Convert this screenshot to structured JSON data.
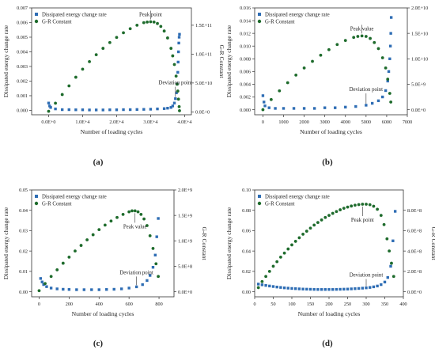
{
  "figure": {
    "panels": [
      {
        "label": "(a)",
        "xlabel": "Number of loading cycles",
        "ylabel_left": "Dissipated energy change rate",
        "ylabel_right": "G-R Constant",
        "legend": [
          "Dissipated energy change rate",
          "G-R Constant"
        ],
        "peak_text": "Peak point",
        "deviation_text": "Deviation point"
      },
      {
        "label": "(b)",
        "xlabel": "Number of loading cycles",
        "ylabel_left": "Dissipated energy change rate",
        "ylabel_right": "G-R Constant",
        "legend": [
          "Dissipated energy change rate",
          "G-R Constant"
        ],
        "peak_text": "Peak value",
        "deviation_text": "Deviation point"
      },
      {
        "label": "(c)",
        "xlabel": "Number of loading cycles",
        "ylabel_left": "Dissipated energy change rate",
        "ylabel_right": "G-R Constant",
        "legend": [
          "Dissipated energy change rate",
          "G-R Constant"
        ],
        "peak_text": "Peak value",
        "deviation_text": "Deviation point"
      },
      {
        "label": "(d)",
        "xlabel": "Number of loading cycles",
        "ylabel_left": "Dissipated energy change rate",
        "ylabel_right": "G-R Constant",
        "legend": [
          "Dissipated energy change rate",
          "G-R Constant"
        ],
        "peak_text": "Peak point",
        "deviation_text": "Deviation point"
      }
    ]
  },
  "chart_data": [
    {
      "type": "scatter",
      "label": "(a)",
      "xlabel": "Number of loading cycles",
      "ylabel": "Dissipated energy change rate",
      "y2label": "G-R Constant",
      "xlim": [
        -5000,
        42000
      ],
      "ylim": [
        -0.0003,
        0.007
      ],
      "y2lim": [
        -5000000000.0,
        180000000000.0
      ],
      "xticks": [
        0,
        10000,
        20000,
        30000,
        40000
      ],
      "xtick_labels": [
        "0.0E+0",
        "1.0E+4",
        "2.0E+4",
        "3.0E+4",
        "4.0E+4"
      ],
      "yticks": [
        0,
        0.001,
        0.002,
        0.003,
        0.004,
        0.005,
        0.006,
        0.007
      ],
      "ytick_labels": [
        "0.000",
        "0.001",
        "0.002",
        "0.003",
        "0.004",
        "0.005",
        "0.006",
        "0.007"
      ],
      "y2ticks": [
        0,
        50000000000.0,
        100000000000.0,
        150000000000.0
      ],
      "y2tick_labels": [
        "0.0E+0",
        "5.0E+10",
        "1.0E+11",
        "1.5E+11"
      ],
      "legend_position": "top-left",
      "series": [
        {
          "name": "Dissipated energy change rate",
          "axis": "left",
          "marker": "square",
          "color": "#2e6db4",
          "x": [
            0,
            300,
            600,
            2000,
            4000,
            6000,
            8000,
            10000,
            12000,
            14000,
            16000,
            18000,
            20000,
            22000,
            24000,
            26000,
            28000,
            30000,
            32000,
            34000,
            35000,
            36000,
            36500,
            37000,
            37300,
            37600,
            37800,
            38000,
            38100,
            38200,
            38300,
            38400,
            38500
          ],
          "y": [
            0.0005,
            0.0003,
            0.0002,
            0.0001,
            5e-05,
            5e-05,
            4e-05,
            4e-05,
            3e-05,
            3e-05,
            3e-05,
            4e-05,
            4e-05,
            5e-05,
            5e-05,
            6e-05,
            7e-05,
            8e-05,
            0.0001,
            0.00012,
            0.00015,
            0.0002,
            0.0003,
            0.0005,
            0.0008,
            0.0012,
            0.0018,
            0.0026,
            0.0033,
            0.004,
            0.0046,
            0.005,
            0.0052
          ]
        },
        {
          "name": "G-R Constant",
          "axis": "right",
          "marker": "circle",
          "color": "#1e6b2c",
          "x": [
            0,
            2000,
            4000,
            6000,
            8000,
            10000,
            12000,
            14000,
            16000,
            18000,
            20000,
            22000,
            24000,
            26000,
            28000,
            29000,
            30000,
            31000,
            32000,
            33000,
            34000,
            35000,
            36000,
            36500,
            37000,
            37500,
            37800,
            38000,
            38200,
            38400,
            38500
          ],
          "y": [
            1000000000.0,
            15000000000.0,
            30000000000.0,
            45000000000.0,
            60000000000.0,
            74000000000.0,
            87000000000.0,
            99000000000.0,
            110000000000.0,
            120000000000.0,
            129000000000.0,
            137000000000.0,
            144000000000.0,
            150000000000.0,
            154500000000.0,
            155500000000.0,
            156000000000.0,
            155500000000.0,
            153000000000.0,
            148000000000.0,
            140000000000.0,
            128000000000.0,
            110000000000.0,
            97000000000.0,
            82000000000.0,
            62000000000.0,
            48000000000.0,
            36000000000.0,
            22000000000.0,
            9000000000.0,
            2000000000.0
          ]
        }
      ]
    },
    {
      "type": "scatter",
      "label": "(b)",
      "xlabel": "Number of loading cycles",
      "ylabel": "Dissipated energy change rate",
      "y2label": "G-R Constant",
      "xlim": [
        -400,
        7000
      ],
      "ylim": [
        -0.0008,
        0.016
      ],
      "y2lim": [
        -1000000000.0,
        20000000000.0
      ],
      "xticks": [
        0,
        1000,
        2000,
        3000,
        4000,
        5000,
        6000,
        7000
      ],
      "xtick_labels": [
        "0",
        "1000",
        "2000",
        "3000",
        "4000",
        "5000",
        "6000",
        "7000"
      ],
      "yticks": [
        0,
        0.002,
        0.004,
        0.006,
        0.008,
        0.01,
        0.012,
        0.014,
        0.016
      ],
      "ytick_labels": [
        "0.000",
        "0.002",
        "0.004",
        "0.006",
        "0.008",
        "0.010",
        "0.012",
        "0.014",
        "0.016"
      ],
      "y2ticks": [
        0,
        5000000000.0,
        10000000000.0,
        15000000000.0,
        20000000000.0
      ],
      "y2tick_labels": [
        "0.0E+0",
        "5.0E+9",
        "1.0E+10",
        "1.5E+10",
        "2.0E+10"
      ],
      "legend_position": "top-left",
      "series": [
        {
          "name": "Dissipated energy change rate",
          "axis": "left",
          "marker": "square",
          "color": "#2e6db4",
          "x": [
            0,
            50,
            100,
            300,
            600,
            1000,
            1500,
            2000,
            2500,
            3000,
            3500,
            4000,
            4500,
            5000,
            5300,
            5600,
            5800,
            5950,
            6050,
            6100,
            6150,
            6180,
            6200,
            6220
          ],
          "y": [
            0.0022,
            0.0012,
            0.0006,
            0.0003,
            0.0002,
            0.0002,
            0.0002,
            0.0002,
            0.0002,
            0.0003,
            0.0003,
            0.0004,
            0.0005,
            0.0007,
            0.001,
            0.0014,
            0.002,
            0.003,
            0.0045,
            0.006,
            0.008,
            0.01,
            0.012,
            0.0145
          ]
        },
        {
          "name": "G-R Constant",
          "axis": "right",
          "marker": "circle",
          "color": "#1e6b2c",
          "x": [
            0,
            400,
            800,
            1200,
            1600,
            2000,
            2400,
            2800,
            3200,
            3600,
            4000,
            4400,
            4600,
            4800,
            5000,
            5200,
            5400,
            5600,
            5800,
            5950,
            6050,
            6150,
            6200
          ],
          "y": [
            0.0,
            2000000000.0,
            3700000000.0,
            5300000000.0,
            6800000000.0,
            8200000000.0,
            9500000000.0,
            10700000000.0,
            11800000000.0,
            12800000000.0,
            13600000000.0,
            14200000000.0,
            14400000000.0,
            14500000000.0,
            14400000000.0,
            14000000000.0,
            13200000000.0,
            12000000000.0,
            10200000000.0,
            8200000000.0,
            6000000000.0,
            3200000000.0,
            1500000000.0
          ]
        }
      ]
    },
    {
      "type": "scatter",
      "label": "(c)",
      "xlabel": "Number of loading cycles",
      "ylabel": "Dissipated energy change rate",
      "y2label": "G-R Constant",
      "xlim": [
        -50,
        900
      ],
      "ylim": [
        -0.0025,
        0.05
      ],
      "y2lim": [
        -100000000.0,
        2000000000.0
      ],
      "xticks": [
        0,
        200,
        400,
        600,
        800
      ],
      "xtick_labels": [
        "0",
        "200",
        "400",
        "600",
        "800"
      ],
      "yticks": [
        0,
        0.01,
        0.02,
        0.03,
        0.04,
        0.05
      ],
      "ytick_labels": [
        "0.00",
        "0.01",
        "0.02",
        "0.03",
        "0.04",
        "0.05"
      ],
      "y2ticks": [
        0,
        500000000.0,
        1000000000.0,
        1500000000.0,
        2000000000.0
      ],
      "y2tick_labels": [
        "0.0E+0",
        "5.0E+8",
        "1.0E+9",
        "1.5E+9",
        "2.0E+9"
      ],
      "legend_position": "top-left",
      "series": [
        {
          "name": "Dissipated energy change rate",
          "axis": "left",
          "marker": "square",
          "color": "#2e6db4",
          "x": [
            10,
            20,
            30,
            50,
            80,
            120,
            160,
            200,
            250,
            300,
            350,
            400,
            450,
            500,
            550,
            600,
            650,
            690,
            720,
            740,
            760,
            775,
            785,
            795
          ],
          "y": [
            0.0065,
            0.0048,
            0.0035,
            0.0025,
            0.0018,
            0.0014,
            0.0012,
            0.0011,
            0.001,
            0.001,
            0.001,
            0.001,
            0.0011,
            0.0012,
            0.0014,
            0.0018,
            0.0024,
            0.0035,
            0.0055,
            0.008,
            0.012,
            0.018,
            0.027,
            0.036
          ]
        },
        {
          "name": "G-R Constant",
          "axis": "right",
          "marker": "circle",
          "color": "#1e6b2c",
          "x": [
            0,
            40,
            80,
            120,
            160,
            200,
            240,
            280,
            320,
            360,
            400,
            440,
            480,
            520,
            560,
            600,
            620,
            640,
            660,
            680,
            700,
            720,
            740,
            760,
            780,
            795
          ],
          "y": [
            20000000.0,
            160000000.0,
            300000000.0,
            430000000.0,
            560000000.0,
            680000000.0,
            800000000.0,
            910000000.0,
            1020000000.0,
            1120000000.0,
            1220000000.0,
            1310000000.0,
            1390000000.0,
            1460000000.0,
            1520000000.0,
            1570000000.0,
            1590000000.0,
            1590000000.0,
            1570000000.0,
            1520000000.0,
            1430000000.0,
            1300000000.0,
            1100000000.0,
            850000000.0,
            550000000.0,
            300000000.0
          ]
        }
      ]
    },
    {
      "type": "scatter",
      "label": "(d)",
      "xlabel": "Number of loading cycles",
      "ylabel": "Dissipated energy change rate",
      "y2label": "G-R Constant",
      "xlim": [
        0,
        400
      ],
      "ylim": [
        -0.005,
        0.1
      ],
      "y2lim": [
        -50000000.0,
        1000000000.0
      ],
      "xticks": [
        0,
        50,
        100,
        150,
        200,
        250,
        300,
        350,
        400
      ],
      "xtick_labels": [
        "0",
        "50",
        "100",
        "150",
        "200",
        "250",
        "300",
        "350",
        "400"
      ],
      "yticks": [
        0,
        0.02,
        0.04,
        0.06,
        0.08,
        0.1
      ],
      "ytick_labels": [
        "0.00",
        "0.02",
        "0.04",
        "0.06",
        "0.08",
        "0.10"
      ],
      "y2ticks": [
        0,
        200000000.0,
        400000000.0,
        600000000.0,
        800000000.0
      ],
      "y2tick_labels": [
        "0.0E+0",
        "2.0E+8",
        "4.0E+8",
        "6.0E+8",
        "8.0E+8"
      ],
      "legend_position": "top-left",
      "series": [
        {
          "name": "Dissipated energy change rate",
          "axis": "left",
          "marker": "square",
          "color": "#2e6db4",
          "x": [
            10,
            20,
            30,
            40,
            50,
            60,
            70,
            80,
            90,
            100,
            110,
            120,
            130,
            140,
            150,
            160,
            170,
            180,
            190,
            200,
            210,
            220,
            230,
            240,
            250,
            260,
            270,
            280,
            290,
            300,
            310,
            320,
            330,
            340,
            350,
            358,
            366,
            372,
            378
          ],
          "y": [
            0.0075,
            0.0068,
            0.0062,
            0.0056,
            0.0051,
            0.0046,
            0.0042,
            0.0038,
            0.0035,
            0.0032,
            0.003,
            0.0028,
            0.0026,
            0.0025,
            0.0024,
            0.0023,
            0.0022,
            0.0022,
            0.0022,
            0.0022,
            0.0022,
            0.0023,
            0.0024,
            0.0025,
            0.0026,
            0.0028,
            0.003,
            0.0032,
            0.0035,
            0.0038,
            0.0042,
            0.0048,
            0.0056,
            0.007,
            0.0095,
            0.014,
            0.025,
            0.05,
            0.079
          ]
        },
        {
          "name": "G-R Constant",
          "axis": "right",
          "marker": "circle",
          "color": "#1e6b2c",
          "x": [
            10,
            20,
            30,
            40,
            50,
            60,
            70,
            80,
            90,
            100,
            110,
            120,
            130,
            140,
            150,
            160,
            170,
            180,
            190,
            200,
            210,
            220,
            230,
            240,
            250,
            260,
            270,
            280,
            290,
            300,
            310,
            320,
            330,
            340,
            348,
            356,
            362,
            368,
            374
          ],
          "y": [
            40000000.0,
            100000000.0,
            150000000.0,
            200000000.0,
            250000000.0,
            295000000.0,
            340000000.0,
            380000000.0,
            420000000.0,
            460000000.0,
            495000000.0,
            530000000.0,
            565000000.0,
            595000000.0,
            625000000.0,
            655000000.0,
            680000000.0,
            705000000.0,
            730000000.0,
            750000000.0,
            770000000.0,
            788000000.0,
            805000000.0,
            820000000.0,
            832000000.0,
            842000000.0,
            850000000.0,
            856000000.0,
            860000000.0,
            860000000.0,
            855000000.0,
            840000000.0,
            810000000.0,
            750000000.0,
            660000000.0,
            520000000.0,
            400000000.0,
            280000000.0,
            150000000.0
          ]
        }
      ]
    }
  ]
}
